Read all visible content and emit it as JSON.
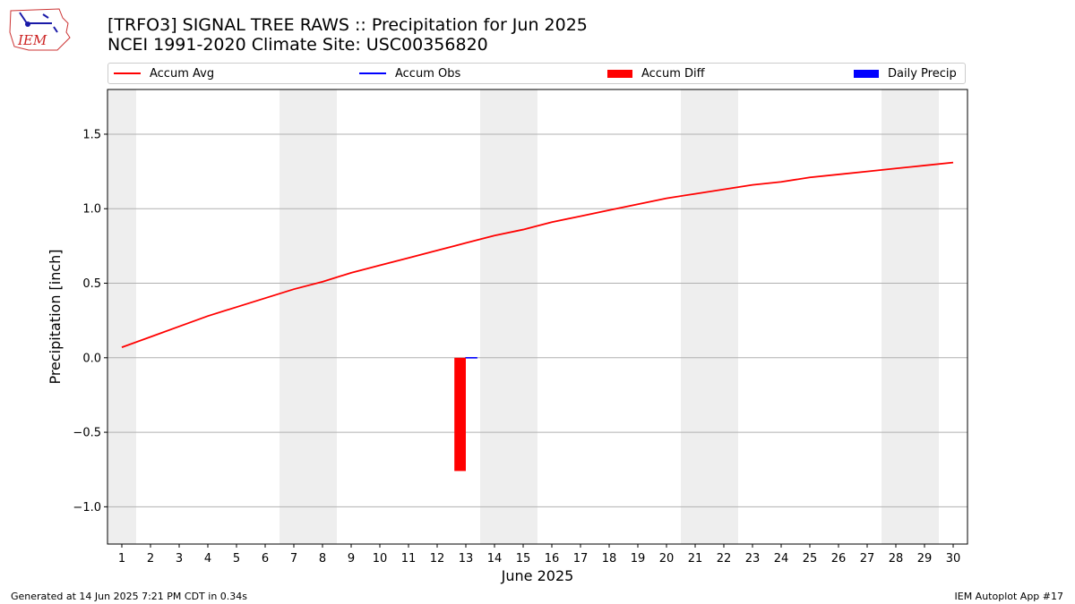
{
  "header": {
    "title_line1": "[TRFO3] SIGNAL TREE RAWS :: Precipitation for Jun 2025",
    "title_line2": "NCEI 1991-2020 Climate Site: USC00356820"
  },
  "logo": {
    "text": "IEM"
  },
  "footer": {
    "left": "Generated at 14 Jun 2025 7:21 PM CDT in 0.34s",
    "right": "IEM Autoplot App #17"
  },
  "chart_data": {
    "type": "line",
    "xlabel": "June 2025",
    "ylabel": "Precipitation [inch]",
    "xlim": [
      0.5,
      30.5
    ],
    "ylim": [
      -1.25,
      1.8
    ],
    "yticks": [
      -1.0,
      -0.5,
      0.0,
      0.5,
      1.0,
      1.5
    ],
    "ytick_labels": [
      "−1.0",
      "−0.5",
      "0.0",
      "0.5",
      "1.0",
      "1.5"
    ],
    "x": [
      1,
      2,
      3,
      4,
      5,
      6,
      7,
      8,
      9,
      10,
      11,
      12,
      13,
      14,
      15,
      16,
      17,
      18,
      19,
      20,
      21,
      22,
      23,
      24,
      25,
      26,
      27,
      28,
      29,
      30
    ],
    "weekend_days": [
      1,
      7,
      8,
      14,
      15,
      21,
      22,
      28,
      29
    ],
    "grid": "y",
    "legend_position": "top",
    "colors": {
      "accum_avg": "#ff0000",
      "accum_obs": "#0000ff",
      "accum_diff": "#ff0000",
      "daily_precip": "#0000ff",
      "weekend": "#eeeeee",
      "grid": "#b0b0b0"
    },
    "legend": [
      {
        "label": "Accum Avg",
        "kind": "line",
        "color": "#ff0000"
      },
      {
        "label": "Accum Obs",
        "kind": "line",
        "color": "#0000ff"
      },
      {
        "label": "Accum Diff",
        "kind": "patch",
        "color": "#ff0000"
      },
      {
        "label": "Daily Precip",
        "kind": "patch",
        "color": "#0000ff"
      }
    ],
    "series": [
      {
        "name": "Accum Avg",
        "type": "line",
        "x": [
          1,
          2,
          3,
          4,
          5,
          6,
          7,
          8,
          9,
          10,
          11,
          12,
          13,
          14,
          15,
          16,
          17,
          18,
          19,
          20,
          21,
          22,
          23,
          24,
          25,
          26,
          27,
          28,
          29,
          30
        ],
        "values": [
          0.07,
          0.14,
          0.21,
          0.28,
          0.34,
          0.4,
          0.46,
          0.51,
          0.57,
          0.62,
          0.67,
          0.72,
          0.77,
          0.82,
          0.86,
          0.91,
          0.95,
          0.99,
          1.03,
          1.07,
          1.1,
          1.13,
          1.16,
          1.18,
          1.21,
          1.23,
          1.25,
          1.27,
          1.29,
          1.31
        ]
      },
      {
        "name": "Accum Obs",
        "type": "line",
        "x": [
          13
        ],
        "values": [
          0.0
        ]
      },
      {
        "name": "Accum Diff",
        "type": "bar",
        "x": [
          13
        ],
        "values": [
          -0.76
        ]
      },
      {
        "name": "Daily Precip",
        "type": "bar",
        "x": [
          13
        ],
        "values": [
          0.0
        ]
      }
    ]
  }
}
